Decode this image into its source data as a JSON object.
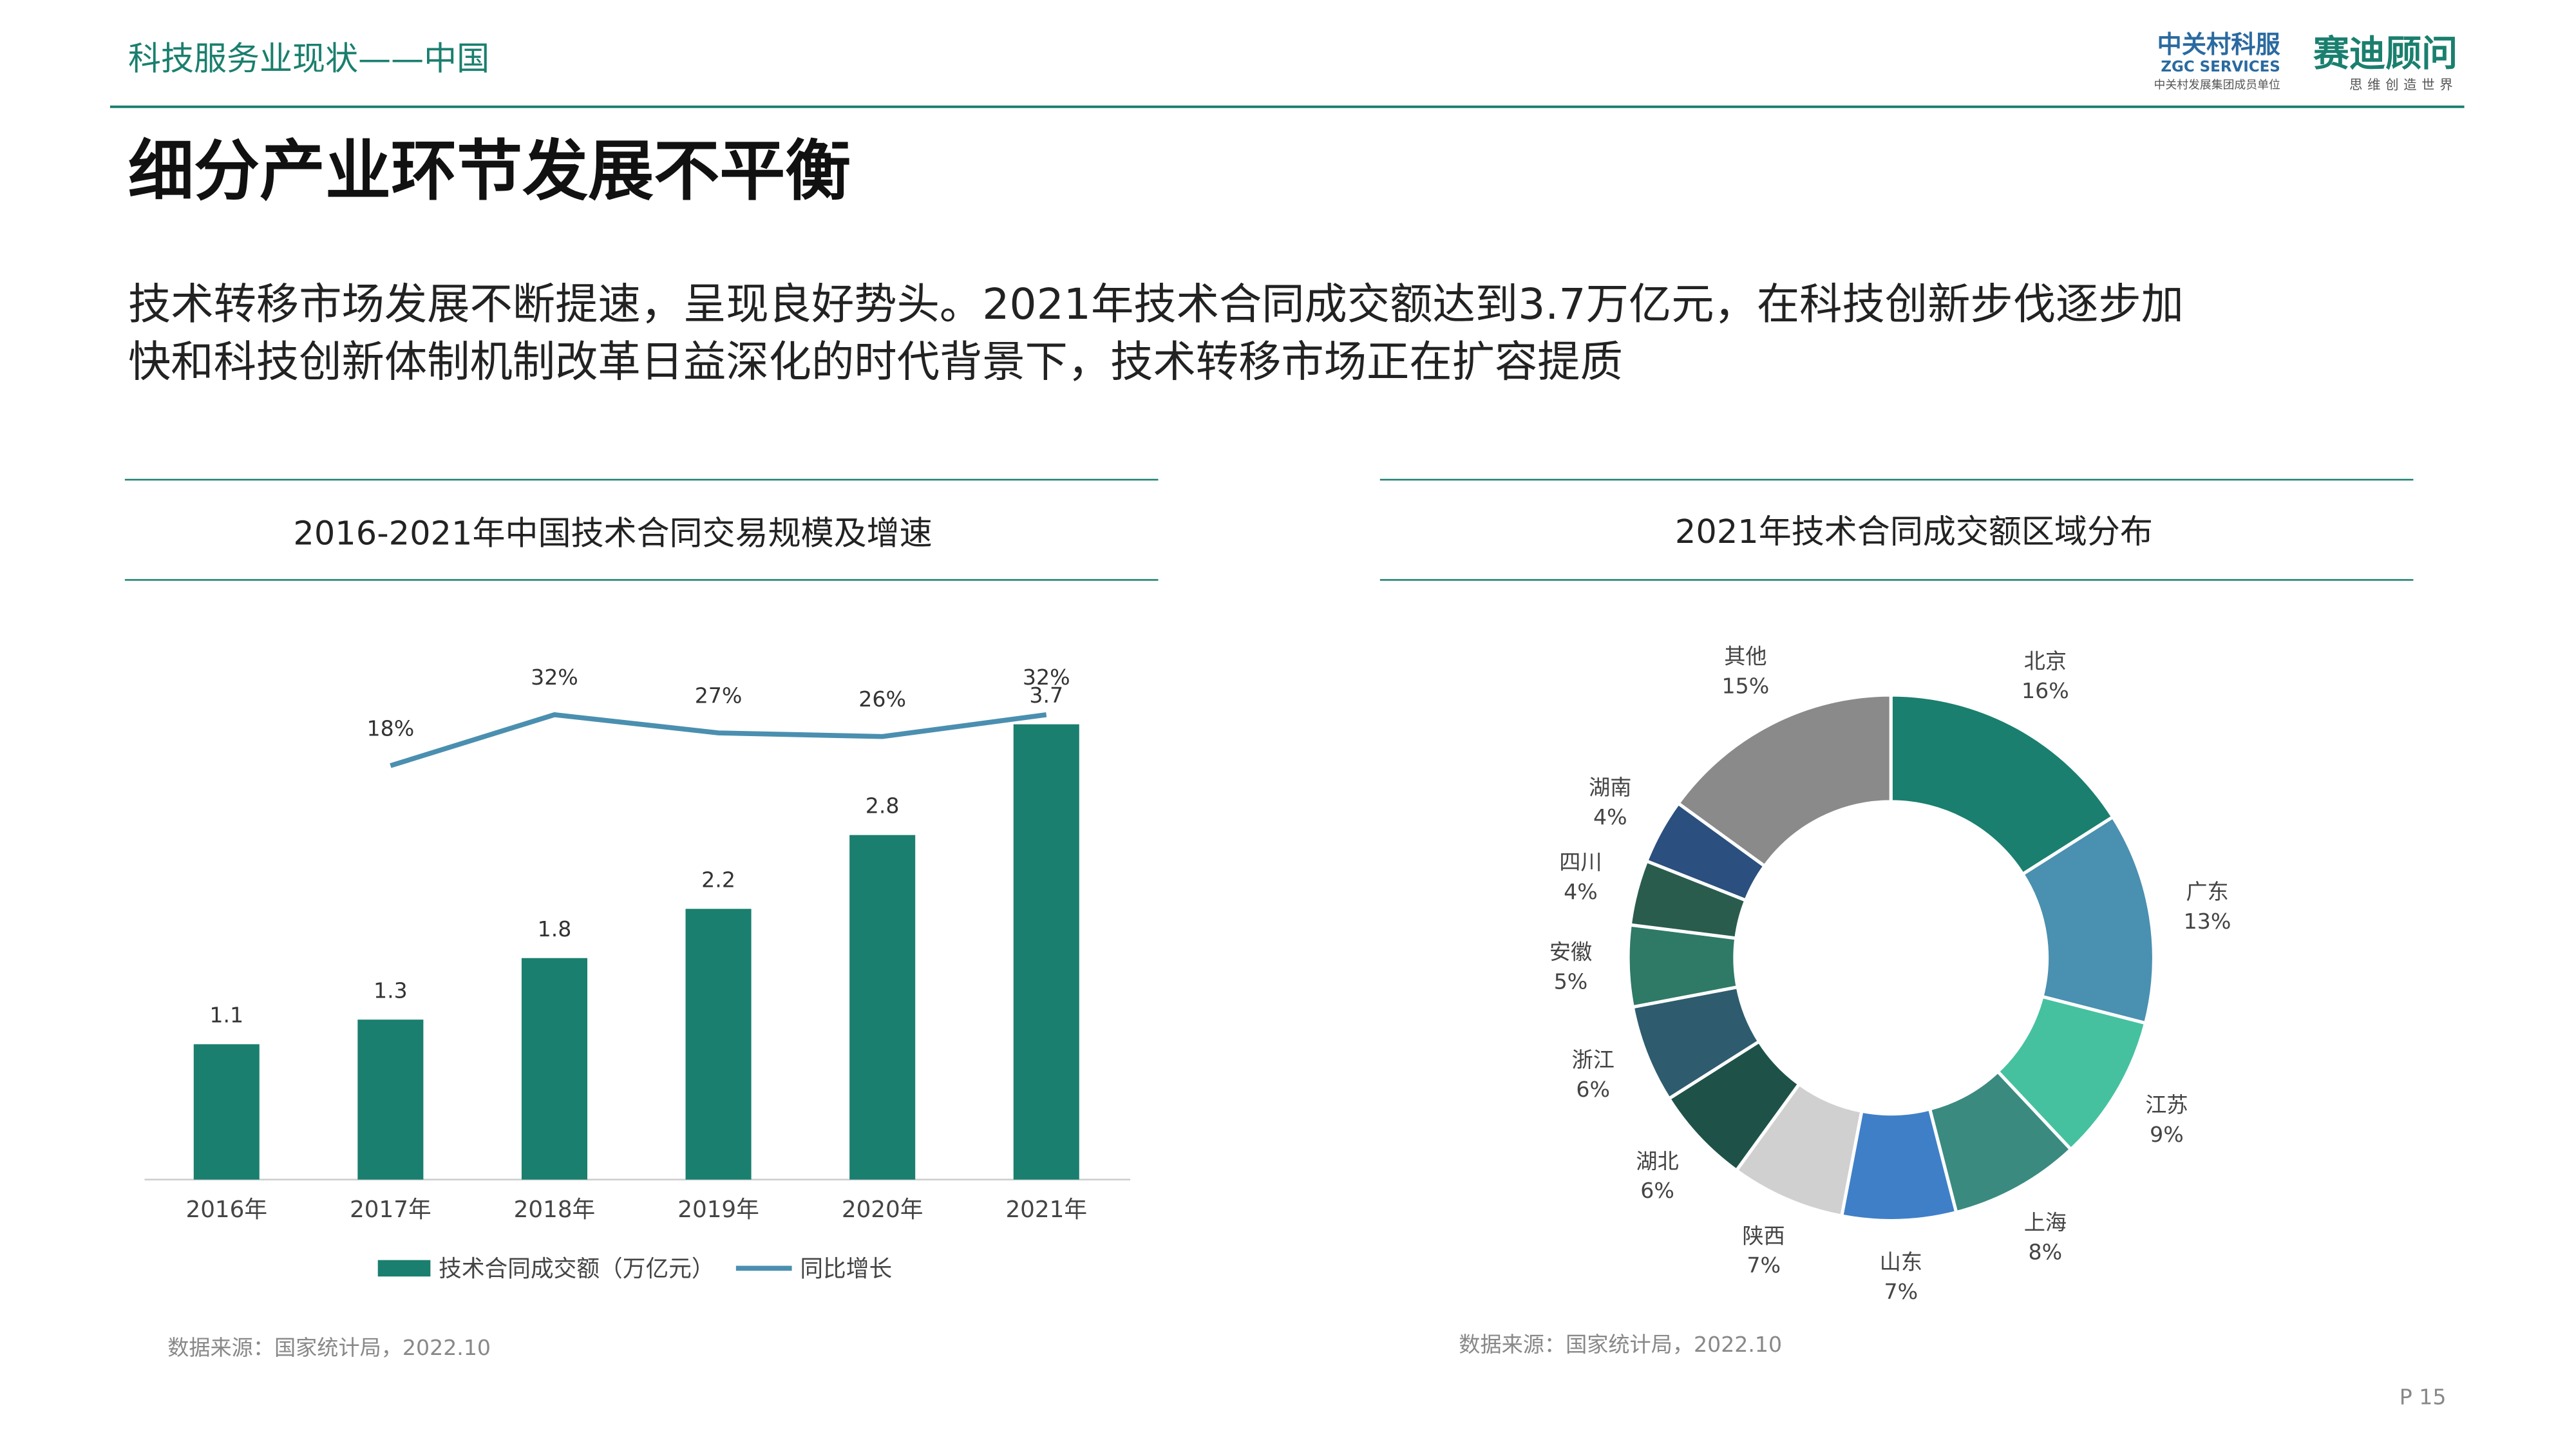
{
  "header": "科技服务业现状——中国",
  "logo": {
    "name": "中关村科服",
    "english": "ZGC SERVICES",
    "sub": "中关村发展集团成员单位",
    "partner": "赛迪顾问",
    "partner_sub": "思维创造世界"
  },
  "title": "细分产业环节发展不平衡",
  "body": [
    "技术转移市场发展不断提速，呈现良好势头。2021年技术合同成交额达到3.7万亿元，在科技创新步伐逐步加",
    "快和科技创新体制机制改革日益深化的时代背景下，技术转移市场正在扩容提质"
  ],
  "sources": [
    "数据来源：国家统计局，2022.10",
    "数据来源：国家统计局，2022.10"
  ],
  "page": "P 15",
  "chart_data": [
    {
      "type": "bar",
      "title": "2016-2021年中国技术合同交易规模及增速",
      "categories": [
        "2016年",
        "2017年",
        "2018年",
        "2019年",
        "2020年",
        "2021年"
      ],
      "series": [
        {
          "name": "技术合同成交额（万亿元）",
          "color": "#1a7f6e",
          "values": [
            1.1,
            1.3,
            1.8,
            2.2,
            2.8,
            3.7
          ]
        },
        {
          "name": "同比增长",
          "color": "#4a8fb0",
          "type": "line",
          "values": [
            null,
            18,
            32,
            27,
            26,
            32
          ],
          "value_labels": [
            null,
            "18%",
            "32%",
            "27%",
            "26%",
            "32%"
          ]
        }
      ]
    },
    {
      "type": "donut",
      "title": "2021年技术合同成交额区域分布",
      "categories": [
        "北京",
        "广东",
        "江苏",
        "上海",
        "山东",
        "陕西",
        "湖北",
        "浙江",
        "安徽",
        "四川",
        "湖南",
        "其他"
      ],
      "values": [
        16,
        13,
        9,
        8,
        7,
        7,
        6,
        6,
        5,
        4,
        4,
        15
      ],
      "value_labels": [
        "16%",
        "13%",
        "9%",
        "8%",
        "7%",
        "7%",
        "6%",
        "6%",
        "5%",
        "4%",
        "4%",
        "15%"
      ],
      "colors": [
        "#1a7f6e",
        "#4a90b0",
        "#45c1a0",
        "#3a8a80",
        "#3f7fc8",
        "#d0d0d0",
        "#1e5248",
        "#2e5c6e",
        "#2e7a66",
        "#2a5c4e",
        "#2b4f7e",
        "#8a8a8a"
      ]
    }
  ]
}
